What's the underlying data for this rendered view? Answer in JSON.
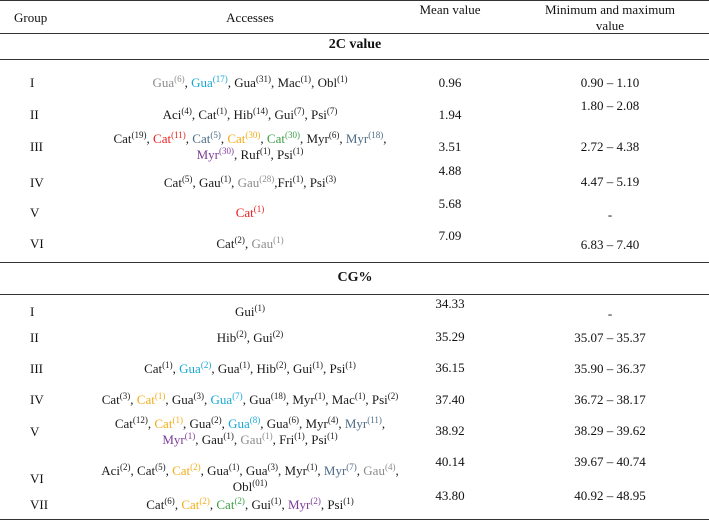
{
  "colors": {
    "black": "#1a1a1a",
    "gray": "#8c8c8c",
    "blue": "#1ba7d6",
    "red": "#e8201e",
    "orange": "#f2ad1a",
    "green": "#3a9e45",
    "slate": "#4e6b85",
    "purple": "#7d3c98"
  },
  "headers": {
    "group": "Group",
    "accesses": "Accesses",
    "mean": "Mean value",
    "minmax_1": "Minimum and maximum",
    "minmax_2": "value"
  },
  "sections": [
    {
      "title": "2C value",
      "rows": [
        {
          "group": "I",
          "mean": "0.96",
          "range": "0.90 – 1.10",
          "lines": [
            [
              {
                "t": "Gua",
                "s": "(6)",
                "c": "gray"
              },
              {
                "t": ", ",
                "c": "black"
              },
              {
                "t": "Gua",
                "s": "(17)",
                "c": "blue"
              },
              {
                "t": ", ",
                "c": "black"
              },
              {
                "t": "Gua",
                "s": "(31)",
                "c": "black"
              },
              {
                "t": ", ",
                "c": "black"
              },
              {
                "t": "Mac",
                "s": "(1)",
                "c": "black"
              },
              {
                "t": ", ",
                "c": "black"
              },
              {
                "t": "Obl",
                "s": "(1)",
                "c": "black"
              }
            ]
          ]
        },
        {
          "group": "II",
          "mean": "1.94",
          "range": "1.80 – 2.08",
          "lines": [
            [
              {
                "t": "Aci",
                "s": "(4)",
                "c": "black"
              },
              {
                "t": ", ",
                "c": "black"
              },
              {
                "t": "Cat",
                "s": "(1)",
                "c": "black"
              },
              {
                "t": ", ",
                "c": "black"
              },
              {
                "t": "Hib",
                "s": "(14)",
                "c": "black"
              },
              {
                "t": ", ",
                "c": "black"
              },
              {
                "t": "Gui",
                "s": "(7)",
                "c": "black"
              },
              {
                "t": ", ",
                "c": "black"
              },
              {
                "t": "Psi",
                "s": "(7)",
                "c": "black"
              }
            ]
          ]
        },
        {
          "group": "III",
          "mean": "3.51",
          "range": "2.72 – 4.38",
          "lines": [
            [
              {
                "t": "Cat",
                "s": "(19)",
                "c": "black"
              },
              {
                "t": ", ",
                "c": "black"
              },
              {
                "t": "Cat",
                "s": "(11)",
                "c": "red"
              },
              {
                "t": ", ",
                "c": "black"
              },
              {
                "t": "Cat",
                "s": "(5)",
                "c": "slate"
              },
              {
                "t": ", ",
                "c": "black"
              },
              {
                "t": "Cat",
                "s": "(30)",
                "c": "orange"
              },
              {
                "t": ", ",
                "c": "black"
              },
              {
                "t": "Cat",
                "s": "(30)",
                "c": "green"
              },
              {
                "t": ", ",
                "c": "black"
              },
              {
                "t": "Myr",
                "s": "(6)",
                "c": "black"
              },
              {
                "t": ", ",
                "c": "black"
              },
              {
                "t": "Myr",
                "s": "(18)",
                "c": "slate"
              },
              {
                "t": ",",
                "c": "black"
              }
            ],
            [
              {
                "t": "Myr",
                "s": "(30)",
                "c": "purple"
              },
              {
                "t": ", ",
                "c": "black"
              },
              {
                "t": "Ruf",
                "s": "(1)",
                "c": "black"
              },
              {
                "t": ", ",
                "c": "black"
              },
              {
                "t": "Psi",
                "s": "(1)",
                "c": "black"
              }
            ]
          ]
        },
        {
          "group": "IV",
          "mean": "4.88",
          "range": "4.47 – 5.19",
          "lines": [
            [
              {
                "t": "Cat",
                "s": "(5)",
                "c": "black"
              },
              {
                "t": ", ",
                "c": "black"
              },
              {
                "t": "Gau",
                "s": "(1)",
                "c": "black"
              },
              {
                "t": ", ",
                "c": "black"
              },
              {
                "t": "Gau",
                "s": "(28)",
                "c": "gray"
              },
              {
                "t": ",",
                "c": "black"
              },
              {
                "t": "Fri",
                "s": "(1)",
                "c": "black"
              },
              {
                "t": ", ",
                "c": "black"
              },
              {
                "t": "Psi",
                "s": "(3)",
                "c": "black"
              }
            ]
          ]
        },
        {
          "group": "V",
          "mean": "5.68",
          "range": "-",
          "lines": [
            [
              {
                "t": "Cat",
                "s": "(1)",
                "c": "red"
              }
            ]
          ]
        },
        {
          "group": "VI",
          "mean": "7.09",
          "range": "6.83 – 7.40",
          "lines": [
            [
              {
                "t": "Cat",
                "s": "(2)",
                "c": "black"
              },
              {
                "t": ", ",
                "c": "black"
              },
              {
                "t": "Gau",
                "s": "(1)",
                "c": "gray"
              }
            ]
          ]
        }
      ]
    },
    {
      "title": "CG%",
      "rows": [
        {
          "group": "I",
          "mean": "34.33",
          "range": "-",
          "lines": [
            [
              {
                "t": "Gui",
                "s": "(1)",
                "c": "black"
              }
            ]
          ]
        },
        {
          "group": "II",
          "mean": "35.29",
          "range": "35.07 – 35.37",
          "lines": [
            [
              {
                "t": "Hib",
                "s": "(2)",
                "c": "black"
              },
              {
                "t": ", ",
                "c": "black"
              },
              {
                "t": "Gui",
                "s": "(2)",
                "c": "black"
              }
            ]
          ]
        },
        {
          "group": "III",
          "mean": "36.15",
          "range": "35.90 – 36.37",
          "lines": [
            [
              {
                "t": "Cat",
                "s": "(1)",
                "c": "black"
              },
              {
                "t": ", ",
                "c": "black"
              },
              {
                "t": "Gua",
                "s": "(2)",
                "c": "blue"
              },
              {
                "t": ", ",
                "c": "black"
              },
              {
                "t": "Gua",
                "s": "(1)",
                "c": "black"
              },
              {
                "t": ", ",
                "c": "black"
              },
              {
                "t": "Hib",
                "s": "(2)",
                "c": "black"
              },
              {
                "t": ", ",
                "c": "black"
              },
              {
                "t": "Gui",
                "s": "(1)",
                "c": "black"
              },
              {
                "t": ", ",
                "c": "black"
              },
              {
                "t": "Psi",
                "s": "(1)",
                "c": "black"
              }
            ]
          ]
        },
        {
          "group": "IV",
          "mean": "37.40",
          "range": "36.72 – 38.17",
          "lines": [
            [
              {
                "t": "Cat",
                "s": "(3)",
                "c": "black"
              },
              {
                "t": ", ",
                "c": "black"
              },
              {
                "t": "Cat",
                "s": "(1)",
                "c": "orange"
              },
              {
                "t": ", ",
                "c": "black"
              },
              {
                "t": "Gua",
                "s": "(3)",
                "c": "black"
              },
              {
                "t": ", ",
                "c": "black"
              },
              {
                "t": "Gua",
                "s": "(7)",
                "c": "blue"
              },
              {
                "t": ", ",
                "c": "black"
              },
              {
                "t": "Gua",
                "s": "(18)",
                "c": "black"
              },
              {
                "t": ", ",
                "c": "black"
              },
              {
                "t": "Myr",
                "s": "(1)",
                "c": "black"
              },
              {
                "t": ", ",
                "c": "black"
              },
              {
                "t": "Mac",
                "s": "(1)",
                "c": "black"
              },
              {
                "t": ", ",
                "c": "black"
              },
              {
                "t": "Psi",
                "s": "(2)",
                "c": "black"
              }
            ]
          ]
        },
        {
          "group": "V",
          "mean": "38.92",
          "range": "38.29 – 39.62",
          "lines": [
            [
              {
                "t": "Cat",
                "s": "(12)",
                "c": "black"
              },
              {
                "t": ", ",
                "c": "black"
              },
              {
                "t": "Cat",
                "s": "(1)",
                "c": "orange"
              },
              {
                "t": ", ",
                "c": "black"
              },
              {
                "t": "Gua",
                "s": "(2)",
                "c": "black"
              },
              {
                "t": ", ",
                "c": "black"
              },
              {
                "t": "Gua",
                "s": "(8)",
                "c": "blue"
              },
              {
                "t": ", ",
                "c": "black"
              },
              {
                "t": "Gua",
                "s": "(6)",
                "c": "black"
              },
              {
                "t": ", ",
                "c": "black"
              },
              {
                "t": "Myr",
                "s": "(4)",
                "c": "black"
              },
              {
                "t": ", ",
                "c": "black"
              },
              {
                "t": "Myr",
                "s": "(11)",
                "c": "slate"
              },
              {
                "t": ",",
                "c": "black"
              }
            ],
            [
              {
                "t": "Myr",
                "s": "(1)",
                "c": "purple"
              },
              {
                "t": ", ",
                "c": "black"
              },
              {
                "t": "Gau",
                "s": "(1)",
                "c": "black"
              },
              {
                "t": ", ",
                "c": "black"
              },
              {
                "t": "Gau",
                "s": "(1)",
                "c": "gray"
              },
              {
                "t": ", ",
                "c": "black"
              },
              {
                "t": "Fri",
                "s": "(1)",
                "c": "black"
              },
              {
                "t": ", ",
                "c": "black"
              },
              {
                "t": "Psi",
                "s": "(1)",
                "c": "black"
              }
            ]
          ]
        },
        {
          "group": "VI",
          "mean": "40.14",
          "range": "39.67 – 40.74",
          "lines": [
            [
              {
                "t": "Aci",
                "s": "(2)",
                "c": "black"
              },
              {
                "t": ", ",
                "c": "black"
              },
              {
                "t": "Cat",
                "s": "(5)",
                "c": "black"
              },
              {
                "t": ", ",
                "c": "black"
              },
              {
                "t": "Cat",
                "s": "(2)",
                "c": "orange"
              },
              {
                "t": ", ",
                "c": "black"
              },
              {
                "t": "Gua",
                "s": "(1)",
                "c": "black"
              },
              {
                "t": ", ",
                "c": "black"
              },
              {
                "t": "Gua",
                "s": "(3)",
                "c": "black"
              },
              {
                "t": ", ",
                "c": "black"
              },
              {
                "t": "Myr",
                "s": "(1)",
                "c": "black"
              },
              {
                "t": ", ",
                "c": "black"
              },
              {
                "t": "Myr",
                "s": "(7)",
                "c": "slate"
              },
              {
                "t": ", ",
                "c": "black"
              },
              {
                "t": "Gau",
                "s": "(4)",
                "c": "gray"
              },
              {
                "t": ",",
                "c": "black"
              }
            ],
            [
              {
                "t": "Obl",
                "s": "(01)",
                "c": "black"
              }
            ]
          ]
        },
        {
          "group": "VII",
          "mean": "43.80",
          "range": "40.92 – 48.95",
          "lines": [
            [
              {
                "t": "Cat",
                "s": "(6)",
                "c": "black"
              },
              {
                "t": ", ",
                "c": "black"
              },
              {
                "t": "Cat",
                "s": "(2)",
                "c": "orange"
              },
              {
                "t": ", ",
                "c": "black"
              },
              {
                "t": "Cat",
                "s": "(2)",
                "c": "green"
              },
              {
                "t": ", ",
                "c": "black"
              },
              {
                "t": "Gui",
                "s": "(1)",
                "c": "black"
              },
              {
                "t": ", ",
                "c": "black"
              },
              {
                "t": "Myr",
                "s": "(2)",
                "c": "purple"
              },
              {
                "t": ", ",
                "c": "black"
              },
              {
                "t": "Psi",
                "s": "(1)",
                "c": "black"
              }
            ]
          ]
        }
      ]
    }
  ]
}
